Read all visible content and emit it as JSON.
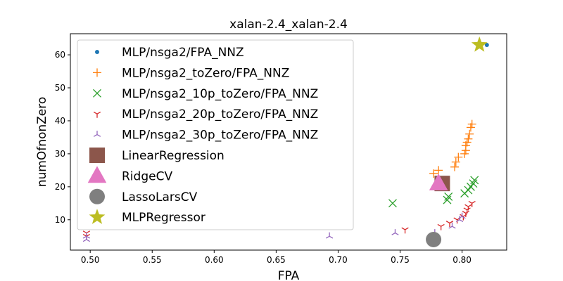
{
  "chart_data": {
    "type": "scatter",
    "title": "xalan-2.4_xalan-2.4",
    "xlabel": "FPA",
    "ylabel": "numOfnonZero",
    "xlim": [
      0.484,
      0.836
    ],
    "ylim": [
      0.8,
      66.4
    ],
    "xticks": [
      0.5,
      0.55,
      0.6,
      0.65,
      0.7,
      0.75,
      0.8
    ],
    "xtick_labels": [
      "0.50",
      "0.55",
      "0.60",
      "0.65",
      "0.70",
      "0.75",
      "0.80"
    ],
    "yticks": [
      10,
      20,
      30,
      40,
      50,
      60
    ],
    "ytick_labels": [
      "10",
      "20",
      "30",
      "40",
      "50",
      "60"
    ],
    "grid": false,
    "legend_position": "upper-left",
    "series": [
      {
        "name": "MLP/nsga2/FPA_NNZ",
        "marker": "dot",
        "color": "#1f77b4",
        "points": [
          [
            0.82,
            63
          ]
        ]
      },
      {
        "name": "MLP/nsga2_toZero/FPA_NNZ",
        "marker": "plus",
        "color": "#ff7f0e",
        "points": [
          [
            0.777,
            24
          ],
          [
            0.781,
            25
          ],
          [
            0.794,
            26
          ],
          [
            0.795,
            27.5
          ],
          [
            0.797,
            29
          ],
          [
            0.802,
            30
          ],
          [
            0.803,
            31
          ],
          [
            0.803,
            32.5
          ],
          [
            0.804,
            33.5
          ],
          [
            0.805,
            34.5
          ],
          [
            0.806,
            36
          ],
          [
            0.807,
            38
          ],
          [
            0.808,
            39
          ]
        ]
      },
      {
        "name": "MLP/nsga2_10p_toZero/FPA_NNZ",
        "marker": "x",
        "color": "#2ca02c",
        "points": [
          [
            0.744,
            15
          ],
          [
            0.788,
            16
          ],
          [
            0.789,
            17
          ],
          [
            0.802,
            18
          ],
          [
            0.805,
            19
          ],
          [
            0.807,
            20
          ],
          [
            0.809,
            21
          ],
          [
            0.81,
            22
          ]
        ]
      },
      {
        "name": "MLP/nsga2_20p_toZero/FPA_NNZ",
        "marker": "tri_down",
        "color": "#d62728",
        "points": [
          [
            0.497,
            5
          ],
          [
            0.497,
            6
          ],
          [
            0.754,
            7
          ],
          [
            0.783,
            8
          ],
          [
            0.79,
            9
          ],
          [
            0.796,
            10
          ],
          [
            0.801,
            11
          ],
          [
            0.803,
            12
          ],
          [
            0.804,
            13
          ],
          [
            0.805,
            14
          ],
          [
            0.808,
            15
          ]
        ]
      },
      {
        "name": "MLP/nsga2_30p_toZero/FPA_NNZ",
        "marker": "tri_up",
        "color": "#9467bd",
        "points": [
          [
            0.497,
            4
          ],
          [
            0.497,
            5
          ],
          [
            0.693,
            5
          ],
          [
            0.746,
            6
          ],
          [
            0.778,
            6
          ],
          [
            0.792,
            8
          ],
          [
            0.798,
            10
          ],
          [
            0.8,
            11
          ]
        ]
      },
      {
        "name": "LinearRegression",
        "marker": "square",
        "color": "#8c564b",
        "points": [
          [
            0.784,
            21
          ]
        ]
      },
      {
        "name": "RidgeCV",
        "marker": "triangle",
        "color": "#e377c2",
        "points": [
          [
            0.781,
            21
          ]
        ]
      },
      {
        "name": "LassoLarsCV",
        "marker": "circle",
        "color": "#7f7f7f",
        "points": [
          [
            0.777,
            4
          ]
        ]
      },
      {
        "name": "MLPRegressor",
        "marker": "star",
        "color": "#bcbd22",
        "points": [
          [
            0.814,
            63
          ]
        ]
      }
    ]
  }
}
